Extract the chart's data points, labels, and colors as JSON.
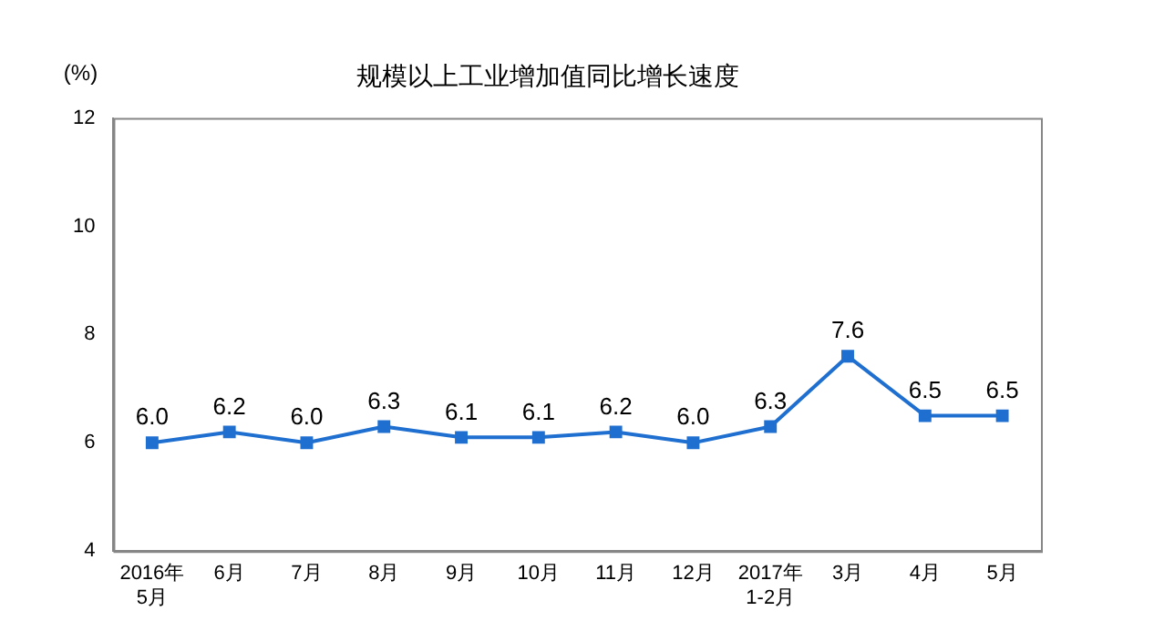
{
  "chart_data": {
    "type": "line",
    "title": "规模以上工业增加值同比增长速度",
    "ylabel": "(%)",
    "categories": [
      "2016年\n5月",
      "6月",
      "7月",
      "8月",
      "9月",
      "10月",
      "11月",
      "12月",
      "2017年\n1-2月",
      "3月",
      "4月",
      "5月"
    ],
    "series": [
      {
        "color": "#1f6fd0",
        "values": [
          6.0,
          6.2,
          6.0,
          6.3,
          6.1,
          6.1,
          6.2,
          6.0,
          6.3,
          7.6,
          6.5,
          6.5
        ],
        "value_labels": [
          "6.0",
          "6.2",
          "6.0",
          "6.3",
          "6.1",
          "6.1",
          "6.2",
          "6.0",
          "6.3",
          "7.6",
          "6.5",
          "6.5"
        ]
      }
    ],
    "ylim": [
      4,
      12
    ],
    "yticks": [
      4,
      6,
      8,
      10,
      12
    ],
    "grid": false,
    "legend": false,
    "marker": "square",
    "line_style": "solid"
  }
}
